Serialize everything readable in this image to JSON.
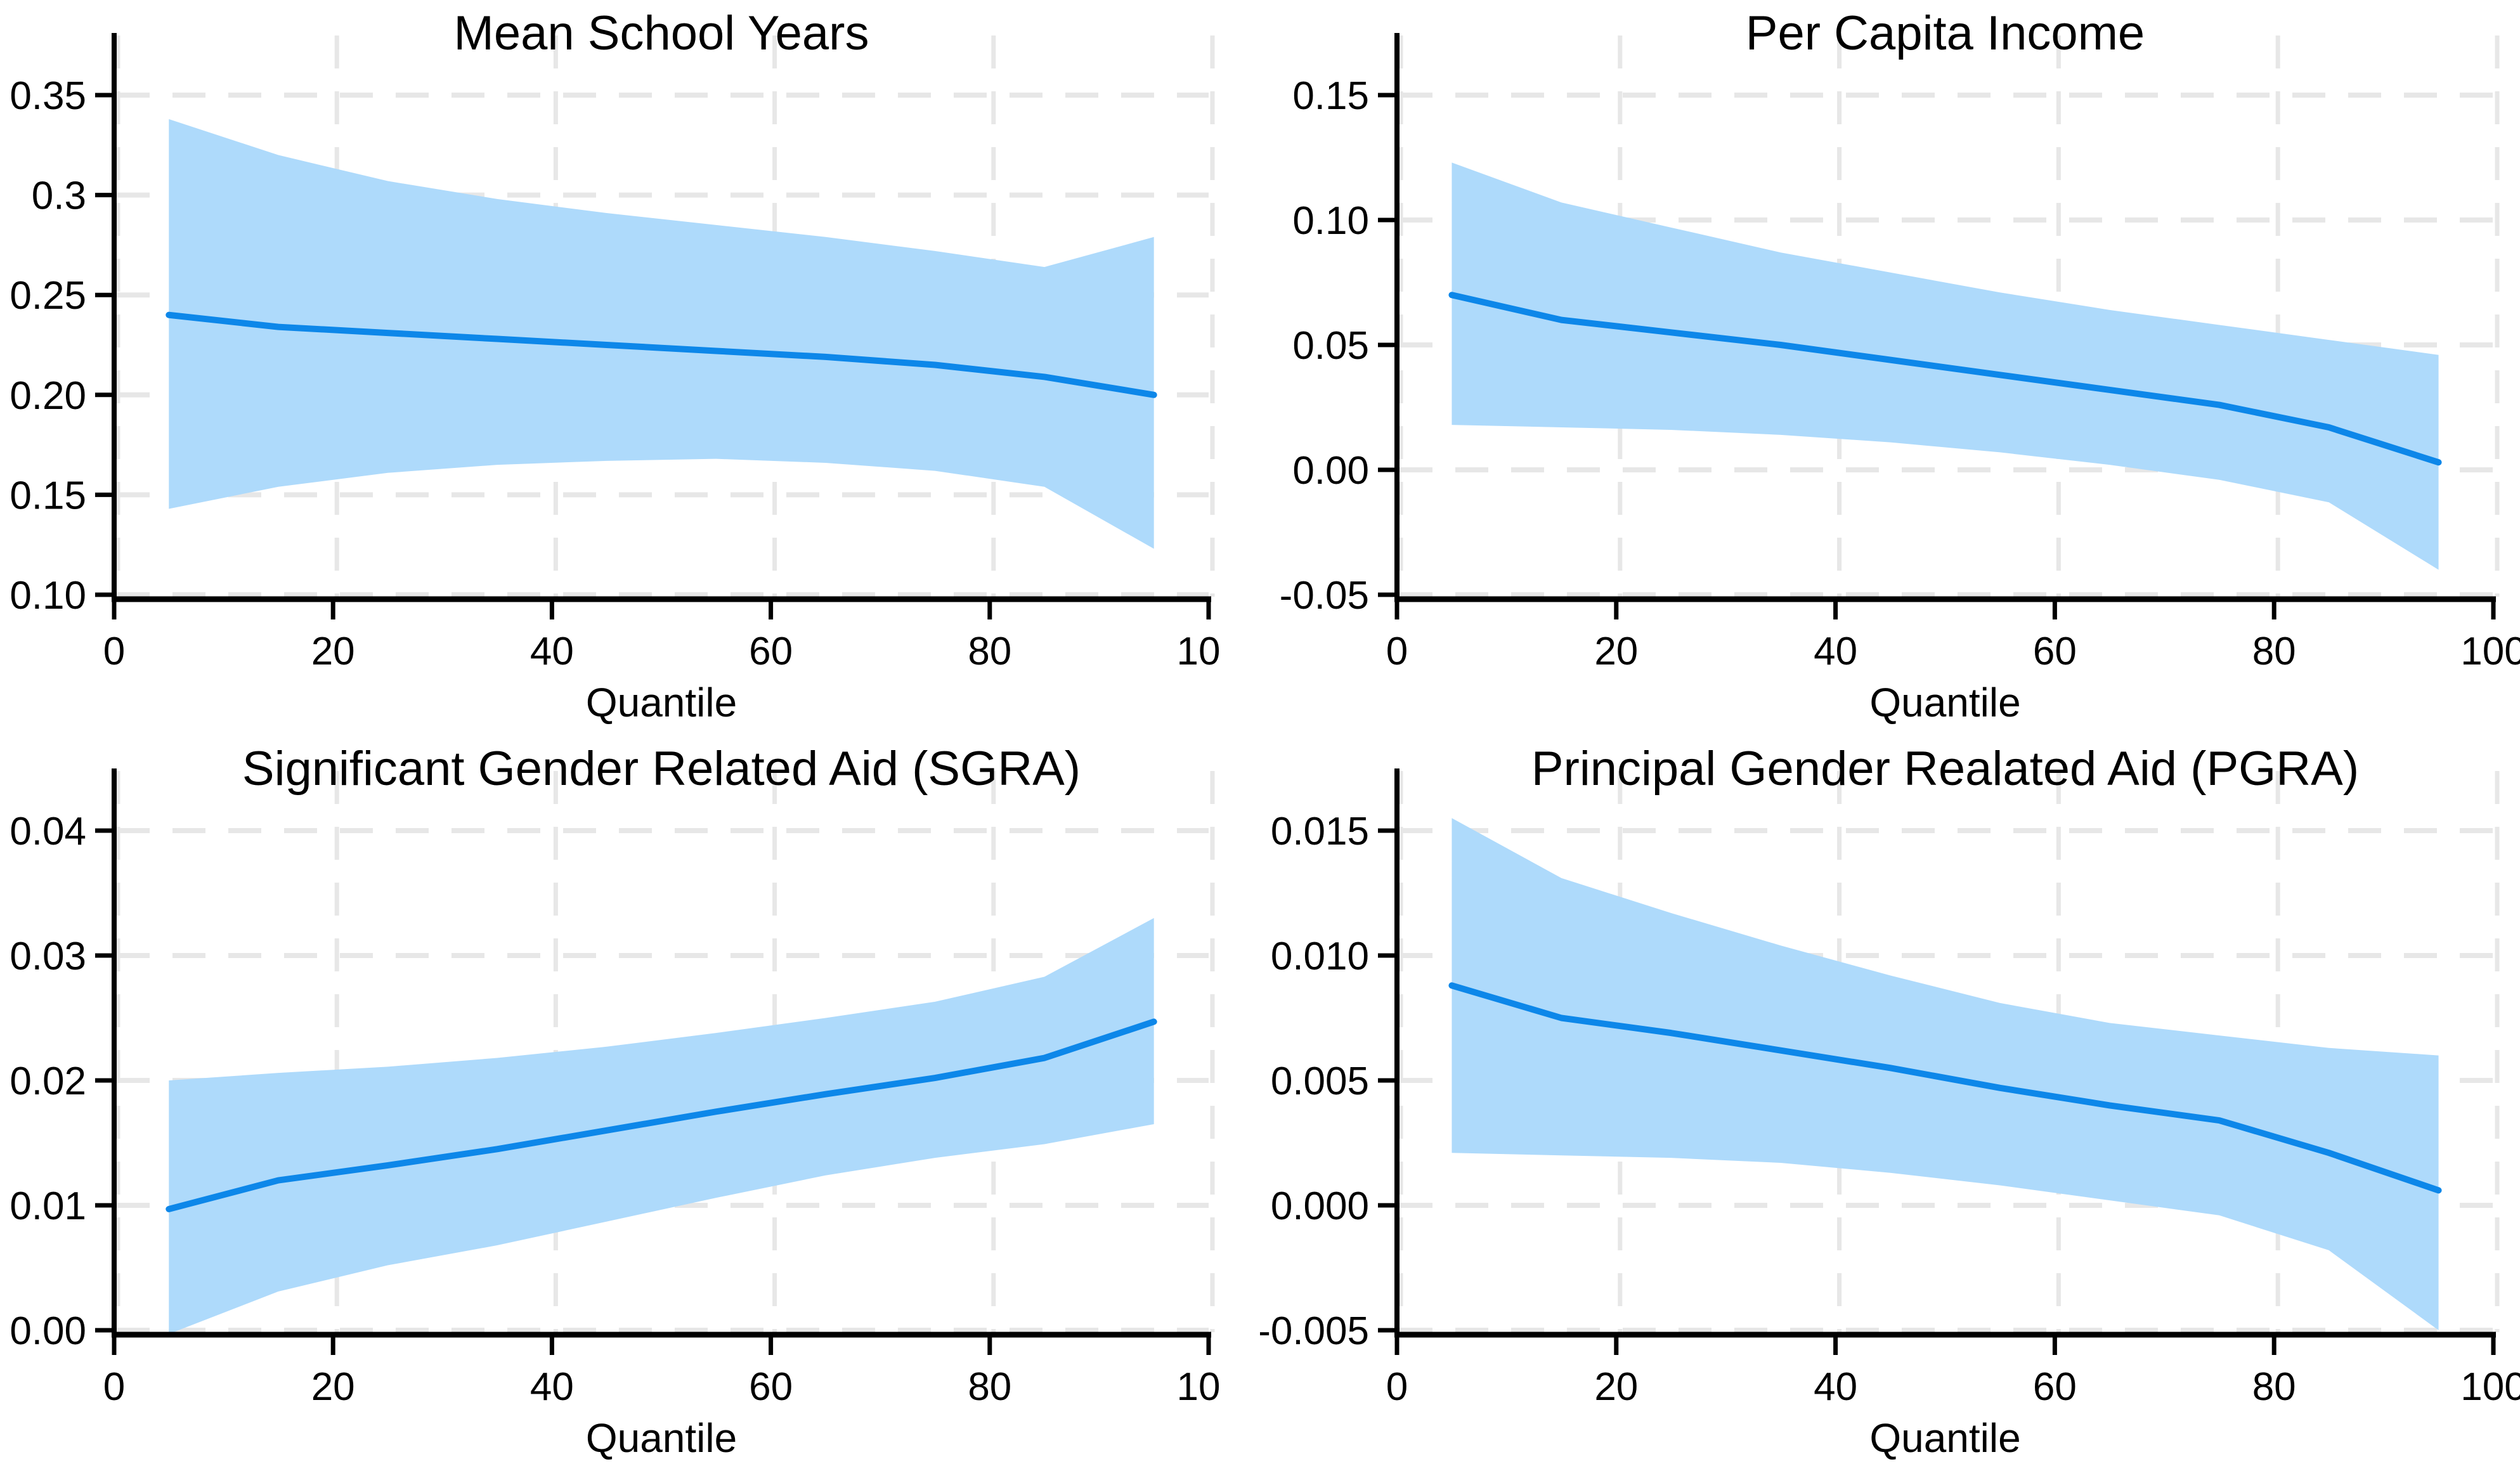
{
  "figure": {
    "background": "#ffffff",
    "x_axis_title": "Quantile"
  },
  "style": {
    "band_color": "#AEDAFB",
    "line_color": "#0D87E9",
    "grid_color": "#E7E7E7",
    "axis_color": "#000000",
    "text_color": "#000000"
  },
  "chart_data": [
    {
      "type": "line",
      "id": "mean-school-years",
      "position": "top-left",
      "title": "Mean School Years",
      "xlabel": "Quantile",
      "ylabel": "",
      "x": [
        5,
        15,
        25,
        35,
        45,
        55,
        65,
        75,
        85,
        95
      ],
      "series": [
        {
          "name": "mean",
          "values": [
            0.24,
            0.234,
            0.231,
            0.228,
            0.225,
            0.222,
            0.219,
            0.215,
            0.209,
            0.2
          ]
        },
        {
          "name": "ci_upper",
          "values": [
            0.338,
            0.32,
            0.307,
            0.298,
            0.291,
            0.285,
            0.279,
            0.272,
            0.264,
            0.279
          ]
        },
        {
          "name": "ci_lower",
          "values": [
            0.143,
            0.154,
            0.161,
            0.165,
            0.167,
            0.168,
            0.166,
            0.162,
            0.154,
            0.123
          ]
        }
      ],
      "xlim": [
        0,
        100
      ],
      "ylim": [
        0.1,
        0.35
      ],
      "x_ticks": [
        0,
        20,
        40,
        60,
        80,
        100
      ],
      "x_tick_labels": [
        "0",
        "20",
        "40",
        "60",
        "80",
        "10"
      ],
      "x_last_label_clipped": true,
      "y_ticks": [
        0.1,
        0.15,
        0.2,
        0.25,
        0.3,
        0.35
      ],
      "y_tick_labels": [
        "0.10",
        "0.15",
        "0.20",
        "0.25",
        "0.3",
        "0.35"
      ],
      "grid": "dashed",
      "legend": "none"
    },
    {
      "type": "line",
      "id": "per-capita-income",
      "position": "top-right",
      "title": "Per Capita Income",
      "xlabel": "Quantile",
      "ylabel": "",
      "x": [
        5,
        15,
        25,
        35,
        45,
        55,
        65,
        75,
        85,
        95
      ],
      "series": [
        {
          "name": "mean",
          "values": [
            0.07,
            0.06,
            0.055,
            0.05,
            0.044,
            0.038,
            0.032,
            0.026,
            0.017,
            0.003
          ]
        },
        {
          "name": "ci_upper",
          "values": [
            0.123,
            0.107,
            0.097,
            0.087,
            0.079,
            0.071,
            0.064,
            0.058,
            0.052,
            0.046
          ]
        },
        {
          "name": "ci_lower",
          "values": [
            0.018,
            0.017,
            0.016,
            0.014,
            0.011,
            0.007,
            0.002,
            -0.004,
            -0.013,
            -0.04
          ]
        }
      ],
      "xlim": [
        0,
        100
      ],
      "ylim": [
        -0.05,
        0.15
      ],
      "x_ticks": [
        0,
        20,
        40,
        60,
        80,
        100
      ],
      "x_tick_labels": [
        "0",
        "20",
        "40",
        "60",
        "80",
        "100"
      ],
      "x_last_label_clipped": false,
      "y_ticks": [
        -0.05,
        0.0,
        0.05,
        0.1,
        0.15
      ],
      "y_tick_labels": [
        "-0.05",
        "0.00",
        "0.05",
        "0.10",
        "0.15"
      ],
      "grid": "dashed",
      "legend": "none"
    },
    {
      "type": "line",
      "id": "significant-gender-related-aid",
      "position": "bottom-left",
      "title": "Significant Gender Related Aid (SGRA)",
      "xlabel": "Quantile",
      "ylabel": "",
      "x": [
        5,
        15,
        25,
        35,
        45,
        55,
        65,
        75,
        85,
        95
      ],
      "series": [
        {
          "name": "mean",
          "values": [
            0.0097,
            0.012,
            0.0132,
            0.0145,
            0.016,
            0.0175,
            0.0189,
            0.0202,
            0.0218,
            0.0247
          ]
        },
        {
          "name": "ci_upper",
          "values": [
            0.02,
            0.0206,
            0.0211,
            0.0218,
            0.0227,
            0.0238,
            0.025,
            0.0263,
            0.0283,
            0.033
          ]
        },
        {
          "name": "ci_lower",
          "values": [
            -0.0003,
            0.0031,
            0.0052,
            0.0068,
            0.0087,
            0.0106,
            0.0124,
            0.0138,
            0.0149,
            0.0165
          ]
        }
      ],
      "xlim": [
        0,
        100
      ],
      "ylim": [
        0.0,
        0.04
      ],
      "x_ticks": [
        0,
        20,
        40,
        60,
        80,
        100
      ],
      "x_tick_labels": [
        "0",
        "20",
        "40",
        "60",
        "80",
        "10"
      ],
      "x_last_label_clipped": true,
      "y_ticks": [
        0.0,
        0.01,
        0.02,
        0.03,
        0.04
      ],
      "y_tick_labels": [
        "0.00",
        "0.01",
        "0.02",
        "0.03",
        "0.04"
      ],
      "grid": "dashed",
      "legend": "none"
    },
    {
      "type": "line",
      "id": "principal-gender-related-aid",
      "position": "bottom-right",
      "title": "Principal Gender Realated Aid (PGRA)",
      "xlabel": "Quantile",
      "ylabel": "",
      "x": [
        5,
        15,
        25,
        35,
        45,
        55,
        65,
        75,
        85,
        95
      ],
      "series": [
        {
          "name": "mean",
          "values": [
            0.0088,
            0.0075,
            0.0069,
            0.0062,
            0.0055,
            0.0047,
            0.004,
            0.0034,
            0.0021,
            0.0006
          ]
        },
        {
          "name": "ci_upper",
          "values": [
            0.0155,
            0.0131,
            0.0117,
            0.0104,
            0.0092,
            0.0081,
            0.0073,
            0.0068,
            0.0063,
            0.006
          ]
        },
        {
          "name": "ci_lower",
          "values": [
            0.0021,
            0.002,
            0.0019,
            0.0017,
            0.0013,
            0.0008,
            0.0002,
            -0.0004,
            -0.0018,
            -0.005
          ]
        }
      ],
      "xlim": [
        0,
        100
      ],
      "ylim": [
        -0.005,
        0.015
      ],
      "x_ticks": [
        0,
        20,
        40,
        60,
        80,
        100
      ],
      "x_tick_labels": [
        "0",
        "20",
        "40",
        "60",
        "80",
        "100"
      ],
      "x_last_label_clipped": false,
      "y_ticks": [
        -0.005,
        0.0,
        0.005,
        0.01,
        0.015
      ],
      "y_tick_labels": [
        "-0.005",
        "0.000",
        "0.005",
        "0.010",
        "0.015"
      ],
      "grid": "dashed",
      "legend": "none"
    }
  ]
}
